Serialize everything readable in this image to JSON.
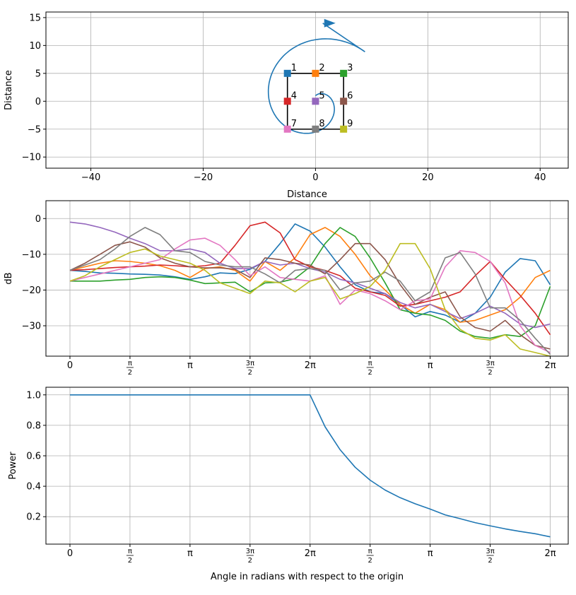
{
  "colors": {
    "c1": "#1f77b4",
    "c2": "#ff7f0e",
    "c3": "#2ca02c",
    "c4": "#d62728",
    "c5": "#9467bd",
    "c6": "#8c564b",
    "c7": "#e377c2",
    "c8": "#7f7f7f",
    "c9": "#bcbd22",
    "grid": "#b0b0b0"
  },
  "chart_data": [
    {
      "type": "scatter",
      "xlabel": "Distance",
      "ylabel": "Distance",
      "xlim": [
        -48,
        45
      ],
      "ylim": [
        -12,
        16
      ],
      "xticks": [
        "−40",
        "−20",
        "0",
        "20",
        "40"
      ],
      "xtick_values": [
        -40,
        -20,
        0,
        20,
        40
      ],
      "yticks": [
        "−10",
        "−5",
        "0",
        "5",
        "10",
        "15"
      ],
      "ytick_values": [
        -10,
        -5,
        0,
        5,
        10,
        15
      ],
      "grid": true,
      "points": [
        {
          "label": "1",
          "x": -5,
          "y": 5
        },
        {
          "label": "2",
          "x": 0,
          "y": 5
        },
        {
          "label": "3",
          "x": 5,
          "y": 5
        },
        {
          "label": "4",
          "x": -5,
          "y": 0
        },
        {
          "label": "5",
          "x": 0,
          "y": 0
        },
        {
          "label": "6",
          "x": 5,
          "y": 0
        },
        {
          "label": "7",
          "x": -5,
          "y": -5
        },
        {
          "label": "8",
          "x": 0,
          "y": -5
        },
        {
          "label": "9",
          "x": 5,
          "y": -5
        }
      ],
      "square": [
        [
          -5,
          5
        ],
        [
          5,
          5
        ],
        [
          5,
          -5
        ],
        [
          -5,
          -5
        ],
        [
          -5,
          5
        ]
      ],
      "spiral": {
        "center": [
          0,
          0
        ],
        "r_start": 1.0,
        "growth_per_turn": 1.38,
        "turns": 1.25,
        "end_arrow_at": [
          1.3,
          14
        ]
      }
    },
    {
      "type": "line",
      "xlabel": "",
      "ylabel": "dB",
      "xlim": [
        -0.4,
        8.3
      ],
      "ylim": [
        -38.5,
        5
      ],
      "xticks": [
        "0",
        "π/2",
        "π",
        "3π/2",
        "2π",
        "π/2",
        "π",
        "3π/2",
        "2π"
      ],
      "xtick_values": [
        0,
        1,
        2,
        3,
        4,
        5,
        6,
        7,
        8
      ],
      "yticks": [
        "0",
        "−10",
        "−20",
        "−30"
      ],
      "ytick_values": [
        0,
        -10,
        -20,
        -30
      ],
      "grid": true,
      "x": [
        0,
        0.25,
        0.5,
        0.75,
        1,
        1.25,
        1.5,
        1.75,
        2,
        2.25,
        2.5,
        2.75,
        3,
        3.25,
        3.5,
        3.75,
        4,
        4.25,
        4.5,
        4.75,
        5,
        5.25,
        5.5,
        5.75,
        6,
        6.25,
        6.5,
        6.75,
        7,
        7.25,
        7.5,
        7.75,
        8
      ],
      "series": [
        {
          "values": [
            -14.5,
            -14.8,
            -15.2,
            -15.3,
            -15.5,
            -15.6,
            -15.8,
            -16.3,
            -17.0,
            -16.3,
            -15.2,
            -15.4,
            -14.2,
            -12.0,
            -7.0,
            -1.5,
            -3.5,
            -8.0,
            -13.5,
            -18.5,
            -20.5,
            -21.0,
            -24.0,
            -27.5,
            -26.0,
            -27.0,
            -29.0,
            -26.5,
            -22.0,
            -15.0,
            -11.2,
            -11.8,
            -18.5
          ]
        },
        {
          "values": [
            -14.5,
            -13.5,
            -12.5,
            -11.8,
            -12.0,
            -12.5,
            -13.2,
            -14.5,
            -16.5,
            -14.0,
            -13.5,
            -14.5,
            -17.5,
            -12.0,
            -14.5,
            -11.0,
            -4.5,
            -2.5,
            -5.0,
            -10.0,
            -16.0,
            -20.0,
            -24.0,
            -26.5,
            -24.0,
            -25.5,
            -29.0,
            -28.5,
            -27.0,
            -25.5,
            -22.0,
            -16.5,
            -14.5
          ]
        },
        {
          "values": [
            -17.5,
            -17.5,
            -17.5,
            -17.2,
            -17.0,
            -16.5,
            -16.3,
            -16.5,
            -17.2,
            -18.2,
            -18.0,
            -17.8,
            -20.5,
            -18.0,
            -17.8,
            -16.8,
            -13.5,
            -7.0,
            -2.5,
            -5.0,
            -11.0,
            -18.0,
            -25.5,
            -26.5,
            -27.0,
            -28.5,
            -31.5,
            -33.0,
            -33.5,
            -32.5,
            -33.0,
            -30.0,
            -19.0
          ]
        },
        {
          "values": [
            -14.5,
            -14.3,
            -14.0,
            -13.7,
            -13.5,
            -13.3,
            -13.0,
            -13.2,
            -13.5,
            -13.2,
            -12.5,
            -7.5,
            -2.0,
            -1.0,
            -4.0,
            -11.5,
            -13.5,
            -14.5,
            -16.0,
            -19.5,
            -20.5,
            -21.5,
            -24.5,
            -24.0,
            -23.0,
            -22.0,
            -20.5,
            -16.0,
            -12.0,
            -17.0,
            -21.5,
            -26.5,
            -32.5
          ]
        },
        {
          "values": [
            -1.0,
            -1.5,
            -2.5,
            -3.8,
            -5.5,
            -7.0,
            -9.0,
            -9.0,
            -8.5,
            -9.5,
            -12.5,
            -14.0,
            -14.0,
            -12.0,
            -13.0,
            -12.5,
            -14.0,
            -15.0,
            -17.0,
            -18.0,
            -19.5,
            -21.0,
            -23.5,
            -25.0,
            -24.0,
            -26.0,
            -28.0,
            -26.5,
            -24.5,
            -26.5,
            -29.5,
            -30.5,
            -29.5
          ]
        },
        {
          "values": [
            -14.5,
            -12.5,
            -10.0,
            -7.5,
            -6.5,
            -8.0,
            -11.0,
            -12.5,
            -13.5,
            -13.8,
            -13.8,
            -14.2,
            -16.5,
            -11.0,
            -11.5,
            -12.5,
            -13.0,
            -15.5,
            -11.5,
            -7.0,
            -7.0,
            -11.5,
            -18.5,
            -24.0,
            -22.0,
            -20.5,
            -27.5,
            -30.5,
            -31.5,
            -28.5,
            -32.5,
            -35.5,
            -36.5
          ]
        },
        {
          "values": [
            -17.5,
            -16.5,
            -15.5,
            -14.5,
            -13.5,
            -12.5,
            -11.5,
            -8.5,
            -6.0,
            -5.5,
            -7.5,
            -11.5,
            -16.0,
            -13.5,
            -16.5,
            -17.0,
            -17.5,
            -16.0,
            -24.0,
            -20.0,
            -21.0,
            -23.0,
            -25.5,
            -23.0,
            -22.5,
            -13.5,
            -9.0,
            -9.5,
            -12.0,
            -18.0,
            -30.0,
            -35.5,
            -37.5
          ]
        },
        {
          "values": [
            -14.5,
            -13.0,
            -11.5,
            -8.5,
            -5.0,
            -2.5,
            -4.5,
            -9.0,
            -9.5,
            -12.0,
            -13.0,
            -13.5,
            -13.5,
            -15.5,
            -18.0,
            -14.5,
            -14.0,
            -14.5,
            -20.0,
            -18.0,
            -17.5,
            -15.0,
            -17.5,
            -23.0,
            -20.5,
            -11.0,
            -9.5,
            -15.5,
            -25.0,
            -25.0,
            -28.5,
            -33.5,
            -38.0
          ]
        },
        {
          "values": [
            -17.5,
            -16.0,
            -13.5,
            -11.5,
            -9.5,
            -8.5,
            -10.5,
            -11.5,
            -12.5,
            -14.5,
            -18.0,
            -19.5,
            -21.0,
            -17.5,
            -18.0,
            -20.5,
            -17.5,
            -16.5,
            -22.5,
            -21.0,
            -19.0,
            -14.5,
            -7.0,
            -7.0,
            -14.0,
            -25.5,
            -31.0,
            -33.5,
            -34.0,
            -32.5,
            -36.5,
            -37.5,
            -38.5
          ]
        }
      ]
    },
    {
      "type": "line",
      "xlabel": "Angle in radians with respect to the origin",
      "ylabel": "Power",
      "xlim": [
        -0.4,
        8.3
      ],
      "ylim": [
        0.02,
        1.05
      ],
      "xticks": [
        "0",
        "π/2",
        "π",
        "3π/2",
        "2π",
        "π/2",
        "π",
        "3π/2",
        "2π"
      ],
      "xtick_values": [
        0,
        1,
        2,
        3,
        4,
        5,
        6,
        7,
        8
      ],
      "yticks": [
        "0.2",
        "0.4",
        "0.6",
        "0.8",
        "1.0"
      ],
      "ytick_values": [
        0.2,
        0.4,
        0.6,
        0.8,
        1.0
      ],
      "grid": true,
      "x": [
        0,
        4,
        4.25,
        4.5,
        4.75,
        5,
        5.25,
        5.5,
        5.75,
        6,
        6.25,
        6.5,
        6.75,
        7,
        7.25,
        7.5,
        7.75,
        8
      ],
      "series": [
        {
          "values": [
            1.0,
            1.0,
            0.79,
            0.64,
            0.525,
            0.44,
            0.375,
            0.325,
            0.285,
            0.25,
            0.212,
            0.187,
            0.161,
            0.14,
            0.12,
            0.103,
            0.088,
            0.068
          ]
        }
      ]
    }
  ]
}
